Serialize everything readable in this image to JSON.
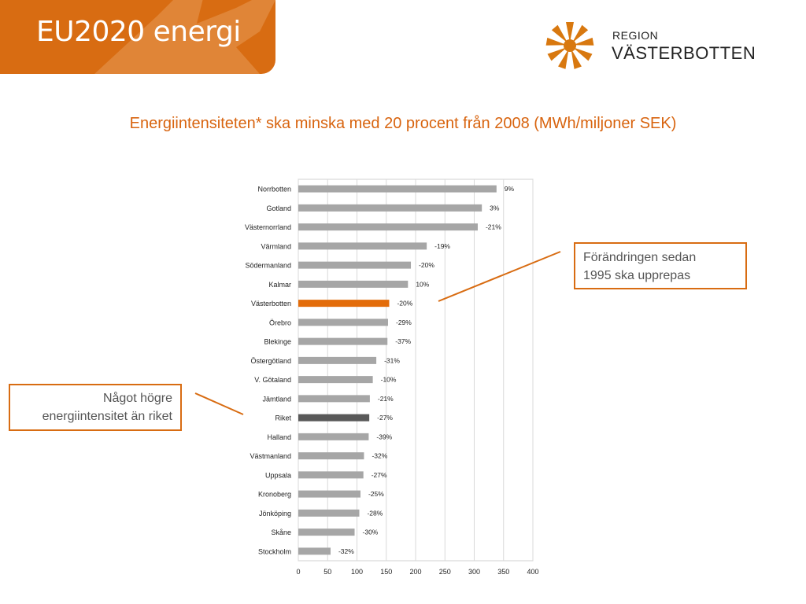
{
  "header": {
    "title": "EU2020 energi"
  },
  "logo": {
    "line1": "REGION",
    "line2": "VÄSTERBOTTEN",
    "icon": "star-logo-icon",
    "color": "#d8780f"
  },
  "subtitle": "Energiintensiteten* ska minska med 20 procent från 2008 (MWh/miljoner SEK)",
  "callouts": {
    "right": {
      "line1": "Förändringen sedan",
      "line2": "1995 ska upprepas"
    },
    "left": {
      "line1": "Något högre",
      "line2": "energiintensitet än riket"
    }
  },
  "colors": {
    "accent": "#d86c12",
    "bar_default": "#a6a6a6",
    "bar_highlight": "#e36c0a",
    "bar_national": "#595959"
  },
  "chart_data": {
    "type": "bar",
    "orientation": "horizontal",
    "title": "",
    "xlabel": "",
    "ylabel": "",
    "xlim": [
      0,
      400
    ],
    "xticks": [
      0,
      50,
      100,
      150,
      200,
      250,
      300,
      350,
      400
    ],
    "grid": true,
    "categories": [
      "Norrbotten",
      "Gotland",
      "Västernorrland",
      "Värmland",
      "Södermanland",
      "Kalmar",
      "Västerbotten",
      "Örebro",
      "Blekinge",
      "Östergötland",
      "V. Götaland",
      "Jämtland",
      "Riket",
      "Halland",
      "Västmanland",
      "Uppsala",
      "Kronoberg",
      "Jönköping",
      "Skåne",
      "Stockholm"
    ],
    "values": [
      338,
      313,
      306,
      219,
      192,
      187,
      155,
      153,
      152,
      133,
      127,
      122,
      121,
      120,
      112,
      111,
      106,
      104,
      96,
      55
    ],
    "labels": [
      "9%",
      "3%",
      "-21%",
      "-19%",
      "-20%",
      "10%",
      "-20%",
      "-29%",
      "-37%",
      "-31%",
      "-10%",
      "-21%",
      "-27%",
      "-39%",
      "-32%",
      "-27%",
      "-25%",
      "-28%",
      "-30%",
      "-32%"
    ],
    "highlight": {
      "Västerbotten": "highlight",
      "Riket": "national"
    }
  }
}
